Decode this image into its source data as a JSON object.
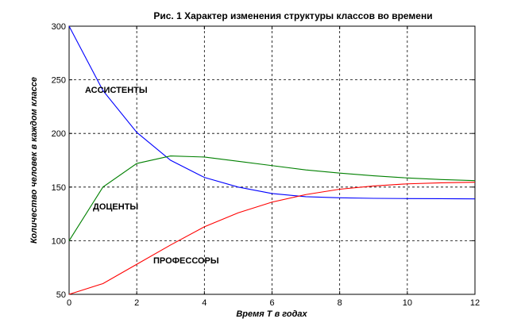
{
  "chart_data": {
    "type": "line",
    "title": "Рис. 1  Характер изменения структуры классов во времени",
    "xlabel": "Время Т в годах",
    "ylabel": "Количество человек в каждом классе",
    "xlim": [
      0,
      12
    ],
    "ylim": [
      50,
      300
    ],
    "xticks": [
      0,
      2,
      4,
      6,
      8,
      10,
      12
    ],
    "yticks": [
      50,
      100,
      150,
      200,
      250,
      300
    ],
    "grid": true,
    "x": [
      0,
      1,
      2,
      3,
      4,
      5,
      6,
      7,
      8,
      9,
      10,
      11,
      12
    ],
    "series": [
      {
        "name": "АССИСТЕНТЫ",
        "color": "#0000ff",
        "values": [
          300,
          240,
          201,
          175,
          159,
          150,
          144,
          141,
          140,
          139.5,
          139.3,
          139.2,
          139
        ]
      },
      {
        "name": "ДОЦЕНТЫ",
        "color": "#008000",
        "values": [
          100,
          150,
          172,
          179,
          178,
          174,
          170,
          166,
          163,
          160.5,
          158.5,
          157,
          156
        ]
      },
      {
        "name": "ПРОФЕССОРЫ",
        "color": "#ff0000",
        "values": [
          50,
          60,
          78,
          96,
          113,
          126,
          136,
          143,
          148,
          151,
          153,
          154,
          154.5
        ]
      }
    ]
  }
}
